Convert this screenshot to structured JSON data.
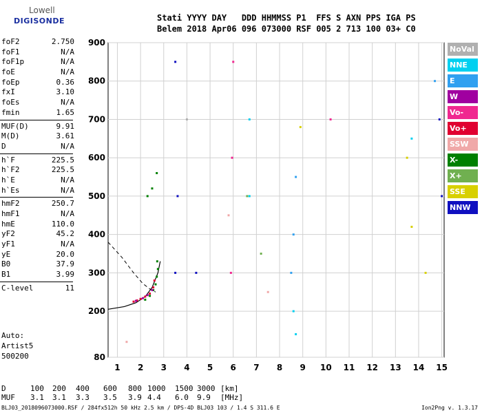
{
  "logo": {
    "top": "Lowell",
    "main": "DIGISONDE"
  },
  "header": {
    "line1": "Stati YYYY DAY   DDD HHMMSS P1  FFS S AXN PPS IGA PS",
    "line2": "Belem 2018 Apr06 096 073000 RSF 005 2 713 100 03+ C0"
  },
  "params_group1": [
    {
      "name": "foF2",
      "value": "2.750"
    },
    {
      "name": "foF1",
      "value": "N/A"
    },
    {
      "name": "foF1p",
      "value": "N/A"
    },
    {
      "name": "foE",
      "value": "N/A"
    },
    {
      "name": "foEp",
      "value": "0.36"
    },
    {
      "name": "fxI",
      "value": "3.10"
    },
    {
      "name": "foEs",
      "value": "N/A"
    },
    {
      "name": "fmin",
      "value": "1.65"
    }
  ],
  "params_group2": [
    {
      "name": "MUF(D)",
      "value": "9.91"
    },
    {
      "name": "M(D)",
      "value": "3.61"
    },
    {
      "name": "D",
      "value": "N/A"
    }
  ],
  "params_group3": [
    {
      "name": "h`F",
      "value": "225.5"
    },
    {
      "name": "h`F2",
      "value": "225.5"
    },
    {
      "name": "h`E",
      "value": "N/A"
    },
    {
      "name": "h`Es",
      "value": "N/A"
    }
  ],
  "params_group4": [
    {
      "name": "hmF2",
      "value": "250.7"
    },
    {
      "name": "hmF1",
      "value": "N/A"
    },
    {
      "name": "hmE",
      "value": "110.0"
    },
    {
      "name": "yF2",
      "value": "45.2"
    },
    {
      "name": "yF1",
      "value": "N/A"
    },
    {
      "name": "yE",
      "value": "20.0"
    },
    {
      "name": "B0",
      "value": "37.9"
    },
    {
      "name": "B1",
      "value": "3.99"
    }
  ],
  "params_group5": [
    {
      "name": "C-level",
      "value": "11"
    }
  ],
  "auto": {
    "l1": "Auto:",
    "l2": "Artist5",
    "l3": "500200"
  },
  "legend": [
    {
      "label": "NoVal",
      "color": "#b0b0b0"
    },
    {
      "label": "NNE",
      "color": "#00d0f0"
    },
    {
      "label": "E",
      "color": "#30a0f0"
    },
    {
      "label": "W",
      "color": "#a000a0"
    },
    {
      "label": "Vo-",
      "color": "#f02890"
    },
    {
      "label": "Vo+",
      "color": "#e00030"
    },
    {
      "label": "SSW",
      "color": "#f0a8a8"
    },
    {
      "label": "X-",
      "color": "#008000"
    },
    {
      "label": "X+",
      "color": "#70b050"
    },
    {
      "label": "SSE",
      "color": "#d8d000"
    },
    {
      "label": "NNW",
      "color": "#1010c0"
    }
  ],
  "muf_table": {
    "d_label": "D",
    "d_values": [
      "100",
      "200",
      "400",
      "600",
      "800",
      "1000",
      "1500",
      "3000"
    ],
    "d_unit": "[km]",
    "muf_label": "MUF",
    "muf_values": [
      "3.1",
      "3.1",
      "3.3",
      "3.5",
      "3.9",
      "4.4",
      "6.0",
      "9.9"
    ],
    "muf_unit": "[MHz]"
  },
  "footer": {
    "left": "BLJ03_2018096073000.RSF / 284fx512h 50 kHz 2.5 km / DPS-4D BLJ03 103 / 1.4 S 311.6 E",
    "right": "Ion2Png v. 1.3.17"
  },
  "chart_data": {
    "type": "scatter",
    "x_ticks": [
      "1",
      "2",
      "3",
      "4",
      "5",
      "6",
      "7",
      "8",
      "9",
      "10",
      "11",
      "12",
      "13",
      "14",
      "15"
    ],
    "y_ticks": [
      "80",
      "200",
      "300",
      "400",
      "500",
      "600",
      "700",
      "800",
      "900"
    ],
    "xlim": [
      0.6,
      15.1
    ],
    "ylim": [
      80,
      900
    ],
    "grid": true,
    "legend_position": "right",
    "series": [
      {
        "name": "X-",
        "color": "#008000",
        "points": [
          [
            2.2,
            230
          ],
          [
            2.4,
            240
          ],
          [
            2.55,
            255
          ],
          [
            2.65,
            270
          ],
          [
            2.7,
            290
          ],
          [
            2.75,
            310
          ],
          [
            2.72,
            330
          ],
          [
            2.3,
            500
          ],
          [
            2.5,
            520
          ],
          [
            2.7,
            560
          ]
        ]
      },
      {
        "name": "Vo+",
        "color": "#e00030",
        "points": [
          [
            1.7,
            225
          ],
          [
            1.85,
            228
          ],
          [
            2.0,
            232
          ],
          [
            2.2,
            238
          ],
          [
            2.4,
            246
          ],
          [
            2.55,
            262
          ],
          [
            2.6,
            280
          ]
        ]
      },
      {
        "name": "W",
        "color": "#a000a0",
        "points": [
          [
            1.8,
            227
          ],
          [
            2.1,
            234
          ],
          [
            2.3,
            242
          ],
          [
            2.5,
            255
          ]
        ]
      },
      {
        "name": "NNE",
        "color": "#00d0f0",
        "points": [
          [
            6.7,
            700
          ],
          [
            6.7,
            500
          ],
          [
            8.6,
            200
          ],
          [
            8.7,
            140
          ],
          [
            13.7,
            650
          ]
        ]
      },
      {
        "name": "E",
        "color": "#30a0f0",
        "points": [
          [
            8.5,
            300
          ],
          [
            8.6,
            400
          ],
          [
            8.7,
            550
          ],
          [
            14.7,
            800
          ]
        ]
      },
      {
        "name": "NNW",
        "color": "#1010c0",
        "points": [
          [
            3.5,
            300
          ],
          [
            3.6,
            500
          ],
          [
            3.5,
            850
          ],
          [
            4.4,
            300
          ],
          [
            14.9,
            700
          ],
          [
            15.0,
            500
          ]
        ]
      },
      {
        "name": "SSE",
        "color": "#d8d000",
        "points": [
          [
            8.9,
            680
          ],
          [
            13.5,
            600
          ],
          [
            13.7,
            420
          ],
          [
            14.3,
            300
          ]
        ]
      },
      {
        "name": "Vo-",
        "color": "#f02890",
        "points": [
          [
            5.9,
            300
          ],
          [
            5.95,
            600
          ],
          [
            6.0,
            850
          ],
          [
            10.2,
            700
          ]
        ]
      },
      {
        "name": "SSW",
        "color": "#f0a8a8",
        "points": [
          [
            5.8,
            450
          ],
          [
            7.5,
            250
          ],
          [
            1.4,
            120
          ]
        ]
      },
      {
        "name": "X+",
        "color": "#70b050",
        "points": [
          [
            6.6,
            500
          ],
          [
            7.2,
            350
          ]
        ]
      },
      {
        "name": "NoVal",
        "color": "#b0b0b0",
        "points": [
          [
            4.0,
            700
          ]
        ]
      }
    ],
    "profile_line": {
      "x": [
        0.6,
        1.3,
        1.8,
        2.2,
        2.5,
        2.75,
        2.85
      ],
      "y": [
        205,
        212,
        222,
        238,
        262,
        300,
        330
      ]
    },
    "dashed_line": {
      "x": [
        0.6,
        1.2,
        1.7,
        2.1,
        2.4,
        2.65
      ],
      "y": [
        380,
        340,
        300,
        272,
        258,
        250
      ]
    }
  }
}
